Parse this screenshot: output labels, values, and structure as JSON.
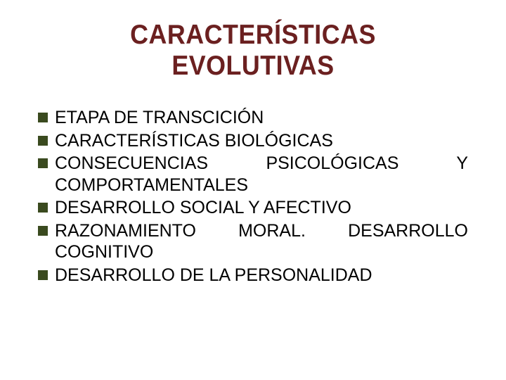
{
  "slide": {
    "title": "CARACTERÍSTICAS EVOLUTIVAS",
    "title_color": "#6b2020",
    "title_fontsize": 39,
    "bullet_color": "#3a4a1f",
    "bullet_size": 14,
    "body_fontsize": 25,
    "body_color": "#000000",
    "background_color": "#ffffff",
    "items": [
      {
        "text": "ETAPA DE TRANSCICIÓN"
      },
      {
        "text": "CARACTERÍSTICAS BIOLÓGICAS"
      },
      {
        "text": "CONSECUENCIAS PSICOLÓGICAS Y COMPORTAMENTALES"
      },
      {
        "text": "DESARROLLO SOCIAL Y AFECTIVO"
      },
      {
        "text": "RAZONAMIENTO MORAL. DESARROLLO COGNITIVO"
      },
      {
        "text": "DESARROLLO DE LA PERSONALIDAD"
      }
    ]
  }
}
